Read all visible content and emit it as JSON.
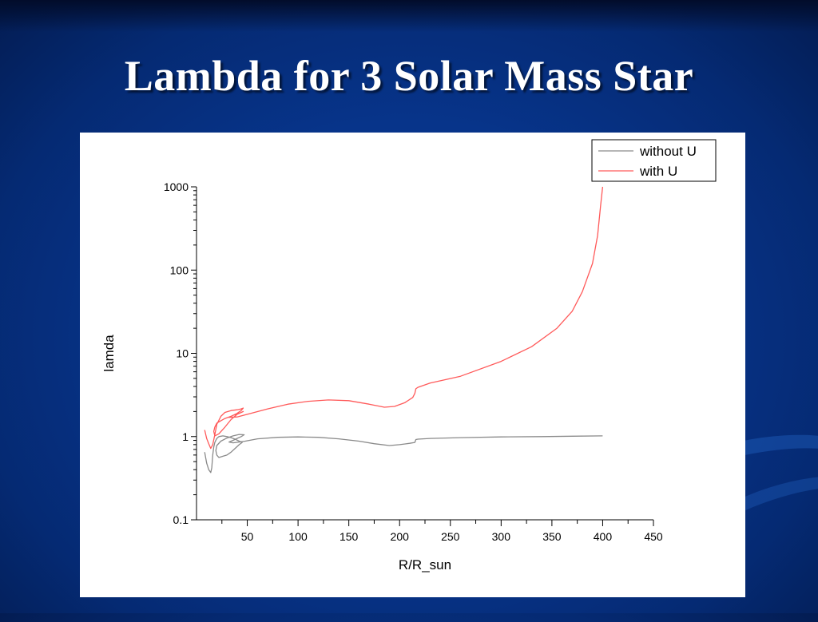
{
  "slide": {
    "title": "Lambda for 3 Solar Mass Star"
  },
  "chart_data": {
    "type": "line",
    "title": "",
    "xlabel": "R/R_sun",
    "ylabel": "lamda",
    "xlim": [
      0,
      450
    ],
    "ylim": [
      0.1,
      1000
    ],
    "y_scale": "log",
    "x_ticks": [
      50,
      100,
      150,
      200,
      250,
      300,
      350,
      400,
      450
    ],
    "x_tick_labels": [
      "50",
      "100",
      "150",
      "200",
      "250",
      "300",
      "350",
      "400",
      "450"
    ],
    "y_ticks": [
      0.1,
      1,
      10,
      100,
      1000
    ],
    "y_tick_labels": [
      "0.1",
      "1",
      "10",
      "100",
      "1000"
    ],
    "legend_position": "top-right",
    "series": [
      {
        "name": "without U",
        "color": "#8a8a8a",
        "x": [
          8,
          10,
          12,
          14,
          15,
          16,
          17,
          18,
          20,
          22,
          26,
          30,
          34,
          38,
          42,
          45,
          42,
          38,
          34,
          30,
          26,
          22,
          20,
          19,
          20,
          24,
          30,
          36,
          42,
          47,
          44,
          40,
          36,
          32,
          36,
          42,
          48,
          60,
          80,
          100,
          120,
          140,
          160,
          175,
          190,
          200,
          210,
          215,
          216,
          218,
          230,
          260,
          300,
          340,
          370,
          400
        ],
        "y": [
          0.65,
          0.48,
          0.4,
          0.37,
          0.42,
          0.6,
          0.75,
          0.85,
          0.95,
          1.0,
          1.02,
          1.0,
          0.97,
          0.93,
          0.88,
          0.85,
          0.8,
          0.72,
          0.65,
          0.6,
          0.58,
          0.56,
          0.6,
          0.68,
          0.78,
          0.88,
          0.96,
          1.02,
          1.06,
          1.05,
          1.0,
          0.95,
          0.9,
          0.86,
          0.84,
          0.86,
          0.88,
          0.94,
          0.98,
          0.99,
          0.98,
          0.94,
          0.88,
          0.82,
          0.78,
          0.8,
          0.83,
          0.85,
          0.92,
          0.93,
          0.95,
          0.97,
          0.99,
          1.0,
          1.01,
          1.02
        ]
      },
      {
        "name": "with U",
        "color": "#ff5a5a",
        "x": [
          8,
          10,
          12,
          14,
          16,
          18,
          20,
          24,
          28,
          34,
          40,
          44,
          46,
          44,
          40,
          34,
          28,
          24,
          20,
          18,
          17,
          18,
          22,
          28,
          34,
          40,
          46,
          42,
          36,
          32,
          40,
          50,
          70,
          90,
          110,
          130,
          150,
          170,
          185,
          195,
          205,
          213,
          215,
          216,
          218,
          230,
          260,
          300,
          330,
          355,
          370,
          380,
          390,
          395,
          398,
          400
        ],
        "y": [
          1.2,
          0.95,
          0.82,
          0.72,
          0.8,
          1.05,
          1.4,
          1.75,
          1.95,
          2.05,
          2.1,
          2.15,
          2.2,
          2.05,
          1.9,
          1.75,
          1.65,
          1.55,
          1.45,
          1.3,
          1.15,
          1.02,
          1.08,
          1.3,
          1.6,
          1.85,
          2.0,
          1.9,
          1.8,
          1.7,
          1.72,
          1.85,
          2.15,
          2.45,
          2.65,
          2.75,
          2.7,
          2.45,
          2.25,
          2.3,
          2.55,
          2.95,
          3.3,
          3.75,
          3.9,
          4.4,
          5.3,
          8.0,
          12.0,
          20.0,
          32.0,
          55.0,
          120.0,
          260.0,
          600.0,
          1000.0
        ]
      }
    ]
  }
}
